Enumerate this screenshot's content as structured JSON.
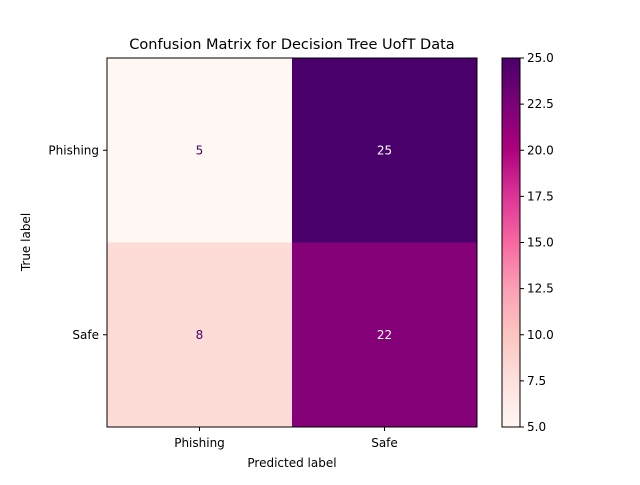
{
  "chart_data": {
    "type": "heatmap",
    "title": "Confusion Matrix for Decision Tree UofT Data",
    "xlabel": "Predicted label",
    "ylabel": "True label",
    "x_categories": [
      "Phishing",
      "Safe"
    ],
    "y_categories": [
      "Phishing",
      "Safe"
    ],
    "values": [
      [
        5,
        25
      ],
      [
        8,
        22
      ]
    ],
    "colormap": "RdPu",
    "color_range": [
      5,
      25
    ],
    "colorbar_ticks": [
      "5.0",
      "7.5",
      "10.0",
      "12.5",
      "15.0",
      "17.5",
      "20.0",
      "22.5",
      "25.0"
    ],
    "grid": false
  }
}
